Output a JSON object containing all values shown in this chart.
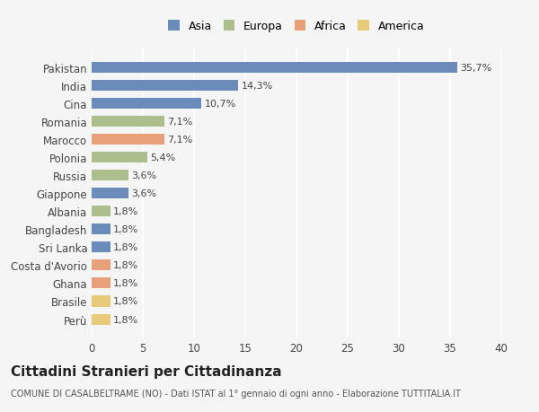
{
  "countries": [
    "Pakistan",
    "India",
    "Cina",
    "Romania",
    "Marocco",
    "Polonia",
    "Russia",
    "Giappone",
    "Albania",
    "Bangladesh",
    "Sri Lanka",
    "Costa d'Avorio",
    "Ghana",
    "Brasile",
    "Perù"
  ],
  "values": [
    35.7,
    14.3,
    10.7,
    7.1,
    7.1,
    5.4,
    3.6,
    3.6,
    1.8,
    1.8,
    1.8,
    1.8,
    1.8,
    1.8,
    1.8
  ],
  "labels": [
    "35,7%",
    "14,3%",
    "10,7%",
    "7,1%",
    "7,1%",
    "5,4%",
    "3,6%",
    "3,6%",
    "1,8%",
    "1,8%",
    "1,8%",
    "1,8%",
    "1,8%",
    "1,8%",
    "1,8%"
  ],
  "continents": [
    "Asia",
    "Asia",
    "Asia",
    "Europa",
    "Africa",
    "Europa",
    "Europa",
    "Asia",
    "Europa",
    "Asia",
    "Asia",
    "Africa",
    "Africa",
    "America",
    "America"
  ],
  "colors": {
    "Asia": "#6b8cba",
    "Europa": "#abbe8c",
    "Africa": "#e8a07a",
    "America": "#e8cb7a"
  },
  "legend_order": [
    "Asia",
    "Europa",
    "Africa",
    "America"
  ],
  "title": "Cittadini Stranieri per Cittadinanza",
  "subtitle": "COMUNE DI CASALBELTRAME (NO) - Dati ISTAT al 1° gennaio di ogni anno - Elaborazione TUTTITALIA.IT",
  "xlim": [
    0,
    40
  ],
  "xticks": [
    0,
    5,
    10,
    15,
    20,
    25,
    30,
    35,
    40
  ],
  "background_color": "#f5f5f5",
  "grid_color": "#ffffff",
  "bar_height": 0.6
}
